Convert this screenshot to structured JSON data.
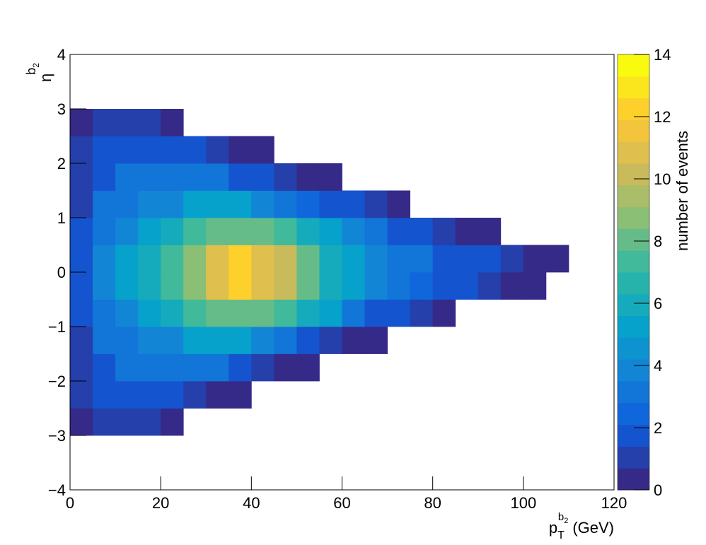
{
  "chart_data": {
    "type": "heatmap",
    "x_label": {
      "base": "p",
      "sub": "T",
      "sup": "b",
      "sup_sub": "2",
      "unit": "(GeV)"
    },
    "y_label": {
      "base": "η",
      "sup": "b",
      "sup_sub": "2"
    },
    "z_label": "number of events",
    "x_edges": [
      0,
      5,
      10,
      15,
      20,
      25,
      30,
      35,
      40,
      45,
      50,
      55,
      60,
      65,
      70,
      75,
      80,
      85,
      90,
      95,
      100,
      105,
      110,
      115,
      120
    ],
    "y_edges": [
      -4,
      -3.5,
      -3,
      -2.5,
      -2,
      -1.5,
      -1,
      -0.5,
      0,
      0.5,
      1,
      1.5,
      2,
      2.5,
      3,
      3.5,
      4
    ],
    "z": [
      [
        0,
        0,
        0,
        0,
        0,
        0,
        0,
        0,
        0,
        0,
        0,
        0,
        0,
        0,
        0,
        0,
        0,
        0,
        0,
        0,
        0,
        0,
        0,
        0
      ],
      [
        0,
        0,
        0,
        0,
        0,
        0,
        0,
        0,
        0,
        0,
        0,
        0,
        0,
        0,
        0,
        0,
        0,
        0,
        0,
        0,
        0,
        0,
        0,
        0
      ],
      [
        0.5,
        1,
        1,
        0.8,
        0.3,
        0,
        0,
        0,
        0,
        0,
        0,
        0,
        0,
        0,
        0,
        0,
        0,
        0,
        0,
        0,
        0,
        0,
        0,
        0
      ],
      [
        1,
        2,
        2,
        2,
        1.5,
        1,
        0.5,
        0.1,
        0,
        0,
        0,
        0,
        0,
        0,
        0,
        0,
        0,
        0,
        0,
        0,
        0,
        0,
        0,
        0
      ],
      [
        1,
        2,
        3,
        3,
        3,
        3,
        3,
        2,
        1,
        0.5,
        0.1,
        0,
        0,
        0,
        0,
        0,
        0,
        0,
        0,
        0,
        0,
        0,
        0,
        0
      ],
      [
        1,
        3,
        3,
        4,
        4,
        5,
        5,
        5,
        4,
        3,
        2,
        1,
        0.3,
        0.1,
        0,
        0,
        0,
        0,
        0,
        0,
        0,
        0,
        0,
        0
      ],
      [
        2,
        3,
        4,
        5,
        6,
        7,
        8,
        8,
        8,
        7,
        6,
        5,
        3,
        2,
        1.5,
        0.8,
        0.3,
        0,
        0,
        0,
        0,
        0,
        0,
        0
      ],
      [
        2,
        4,
        5,
        6,
        7,
        9,
        11,
        12,
        11,
        10,
        8,
        6,
        5,
        4,
        3,
        2.5,
        2,
        1.5,
        1,
        0.5,
        0.2,
        0,
        0,
        0
      ],
      [
        2,
        4,
        5,
        6,
        7,
        9,
        11,
        12,
        11,
        10,
        8,
        6,
        5,
        4,
        3,
        3,
        2,
        2,
        1.5,
        1,
        0.5,
        0.2,
        0,
        0
      ],
      [
        2,
        3,
        4,
        5,
        6,
        7,
        8,
        8,
        8,
        7,
        6,
        5,
        4,
        3,
        2,
        1.5,
        1,
        0.5,
        0.2,
        0,
        0,
        0,
        0,
        0
      ],
      [
        1,
        3,
        3,
        4,
        4,
        5,
        5,
        5,
        4,
        3,
        2.5,
        2,
        1.5,
        1,
        0.3,
        0,
        0,
        0,
        0,
        0,
        0,
        0,
        0,
        0
      ],
      [
        1,
        2,
        3,
        3,
        3,
        3,
        3,
        2,
        1.5,
        1,
        0.5,
        0.1,
        0,
        0,
        0,
        0,
        0,
        0,
        0,
        0,
        0,
        0,
        0,
        0
      ],
      [
        1,
        2,
        2,
        2,
        2,
        1.5,
        1,
        0.5,
        0.2,
        0,
        0,
        0,
        0,
        0,
        0,
        0,
        0,
        0,
        0,
        0,
        0,
        0,
        0,
        0
      ],
      [
        0.5,
        1,
        1,
        1,
        0.3,
        0,
        0,
        0,
        0,
        0,
        0,
        0,
        0,
        0,
        0,
        0,
        0,
        0,
        0,
        0,
        0,
        0,
        0,
        0
      ],
      [
        0,
        0,
        0,
        0,
        0,
        0,
        0,
        0,
        0,
        0,
        0,
        0,
        0,
        0,
        0,
        0,
        0,
        0,
        0,
        0,
        0,
        0,
        0,
        0
      ],
      [
        0,
        0,
        0,
        0,
        0,
        0,
        0,
        0,
        0,
        0,
        0,
        0,
        0,
        0,
        0,
        0,
        0,
        0,
        0,
        0,
        0,
        0,
        0,
        0
      ]
    ],
    "xlim": [
      0,
      120
    ],
    "xticks": [
      0,
      20,
      40,
      60,
      80,
      100,
      120
    ],
    "ylim": [
      -4,
      4
    ],
    "yticks": [
      {
        "value": -4,
        "label": "−4"
      },
      {
        "value": -3,
        "label": "−3"
      },
      {
        "value": -2,
        "label": "−2"
      },
      {
        "value": -1,
        "label": "−1"
      },
      0,
      1,
      2,
      3,
      4
    ],
    "zlim": [
      0,
      14
    ],
    "zticks": [
      0,
      2,
      4,
      6,
      8,
      10,
      12,
      14
    ],
    "contours": 20,
    "palette": [
      "#352a87",
      "#0f5cdd",
      "#1481d6",
      "#06a4ca",
      "#2eb7a4",
      "#87bf77",
      "#d1bb59",
      "#fec832",
      "#f9fb0e"
    ]
  }
}
